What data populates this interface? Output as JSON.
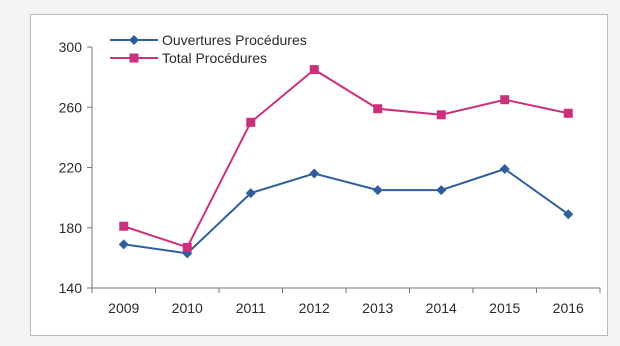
{
  "chart_data": {
    "type": "line",
    "categories": [
      "2009",
      "2010",
      "2011",
      "2012",
      "2013",
      "2014",
      "2015",
      "2016"
    ],
    "series": [
      {
        "name": "Ouvertures Procédures",
        "values": [
          169,
          163,
          203,
          216,
          205,
          205,
          219,
          189
        ],
        "color": "#2e5f9a",
        "marker": "diamond"
      },
      {
        "name": "Total Procédures",
        "values": [
          181,
          167,
          250,
          285,
          259,
          255,
          265,
          256
        ],
        "color": "#cc2f7c",
        "marker": "square"
      }
    ],
    "ylim": [
      140,
      300
    ],
    "yticks": [
      "140",
      "180",
      "220",
      "260",
      "300"
    ],
    "grid": false,
    "legend_position": "top-left"
  }
}
